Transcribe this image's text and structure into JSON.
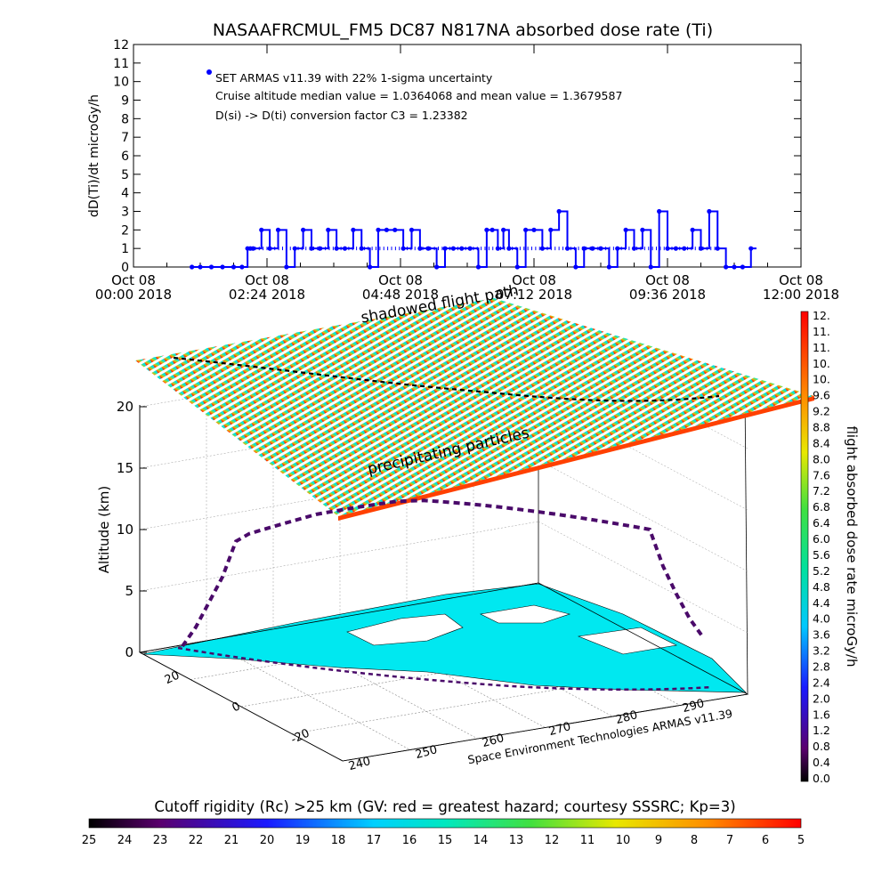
{
  "chart_data": [
    {
      "type": "line",
      "title": "NASAAFRCMUL_FM5 DC87 N817NA absorbed dose rate (Ti)",
      "ylabel": "dD(Ti)/dt microGy/h",
      "ylim": [
        0,
        12
      ],
      "yticks": [
        "0",
        "1",
        "2",
        "3",
        "4",
        "5",
        "6",
        "7",
        "8",
        "9",
        "10",
        "11",
        "12"
      ],
      "xticks": [
        {
          "day": "Oct 08",
          "time": "00:00 2018"
        },
        {
          "day": "Oct 08",
          "time": "02:24 2018"
        },
        {
          "day": "Oct 08",
          "time": "04:48 2018"
        },
        {
          "day": "Oct 08",
          "time": "07:12 2018"
        },
        {
          "day": "Oct 08",
          "time": "09:36 2018"
        },
        {
          "day": "Oct 08",
          "time": "12:00 2018"
        }
      ],
      "legend": "SET ARMAS v11.39 with 22% 1-sigma uncertainty",
      "annotations": [
        "Cruise altitude median value = 1.0364068 and mean value = 1.3679587",
        "D(si) -> D(ti) conversion factor C3 = 1.23382"
      ],
      "colors": {
        "series": "#0000ff",
        "axes": "#000000"
      },
      "series": [
        {
          "x_hours": [
            1.05,
            1.2,
            1.4,
            1.6,
            1.8,
            1.95,
            2.05,
            2.1,
            2.15,
            2.3,
            2.45,
            2.6,
            2.75,
            2.9,
            3.05,
            3.2,
            3.35,
            3.5,
            3.65,
            3.8,
            3.95,
            4.1,
            4.25,
            4.4,
            4.55,
            4.7,
            4.85,
            5.0,
            5.15,
            5.3,
            5.45,
            5.6,
            5.75,
            5.9,
            6.05,
            6.2,
            6.35,
            6.45,
            6.55,
            6.65,
            6.75,
            6.9,
            7.05,
            7.2,
            7.35,
            7.5,
            7.65,
            7.8,
            7.95,
            8.1,
            8.25,
            8.4,
            8.55,
            8.7,
            8.85,
            9.0,
            9.15,
            9.3,
            9.45,
            9.6,
            9.75,
            9.9,
            10.05,
            10.2,
            10.35,
            10.5,
            10.65,
            10.8,
            10.95,
            11.1
          ],
          "y": [
            0,
            0,
            0,
            0,
            0,
            0,
            1,
            1,
            1,
            2,
            1,
            2,
            0,
            1,
            2,
            1,
            1,
            2,
            1,
            1,
            2,
            1,
            0,
            2,
            2,
            2,
            1,
            2,
            1,
            1,
            0,
            1,
            1,
            1,
            1,
            0,
            2,
            2,
            1,
            2,
            1,
            0,
            2,
            2,
            1,
            2,
            3,
            1,
            0,
            1,
            1,
            1,
            0,
            1,
            2,
            1,
            2,
            0,
            3,
            1,
            1,
            1,
            2,
            1,
            3,
            1,
            0,
            0,
            0,
            1
          ]
        }
      ]
    },
    {
      "type": "scatter",
      "title": "shadowed flight path",
      "annotation": "precipitating particles",
      "zlabel": "Altitude (km)",
      "zticks": [
        "0",
        "5",
        "10",
        "15",
        "20"
      ],
      "yticks": [
        "20",
        "0",
        "-20"
      ],
      "xticks": [
        "240",
        "250",
        "260",
        "270",
        "280",
        "290"
      ],
      "credit": "Space Environment Technologies ARMAS v11.39",
      "flight_altitude_km": [
        0.5,
        2,
        4,
        6,
        8.5,
        9,
        9.2,
        9.4,
        9.6,
        9.8,
        10,
        10.1,
        10.2,
        10.3,
        10.4,
        10.5,
        10.6,
        10.6,
        10.6,
        10.5,
        10.4,
        10.3,
        10.2,
        10.1,
        10,
        9.9,
        9.8,
        9.7,
        9.6,
        9.5,
        9.4,
        9.3,
        9.2,
        9.1,
        9,
        8.9,
        6,
        4,
        2,
        0.5
      ],
      "colorbar": {
        "label": "flight absorbed dose rate microGy/h",
        "ticks": [
          "12.",
          "11.",
          "11.",
          "10.",
          "10.",
          "9.6",
          "9.2",
          "8.8",
          "8.4",
          "8.0",
          "7.6",
          "7.2",
          "6.8",
          "6.4",
          "6.0",
          "5.6",
          "5.2",
          "4.8",
          "4.4",
          "4.0",
          "3.6",
          "3.2",
          "2.8",
          "2.4",
          "2.0",
          "1.6",
          "1.2",
          "0.8",
          "0.4",
          "0.0"
        ]
      },
      "rigidity_bar": {
        "title": "Cutoff rigidity (Rc) >25 km (GV: red = greatest hazard; courtesy SSSRC; Kp=3)",
        "ticks": [
          "25",
          "24",
          "23",
          "22",
          "21",
          "20",
          "19",
          "18",
          "17",
          "16",
          "15",
          "14",
          "13",
          "12",
          "11",
          "10",
          "9",
          "8",
          "7",
          "6",
          "5"
        ]
      }
    }
  ]
}
